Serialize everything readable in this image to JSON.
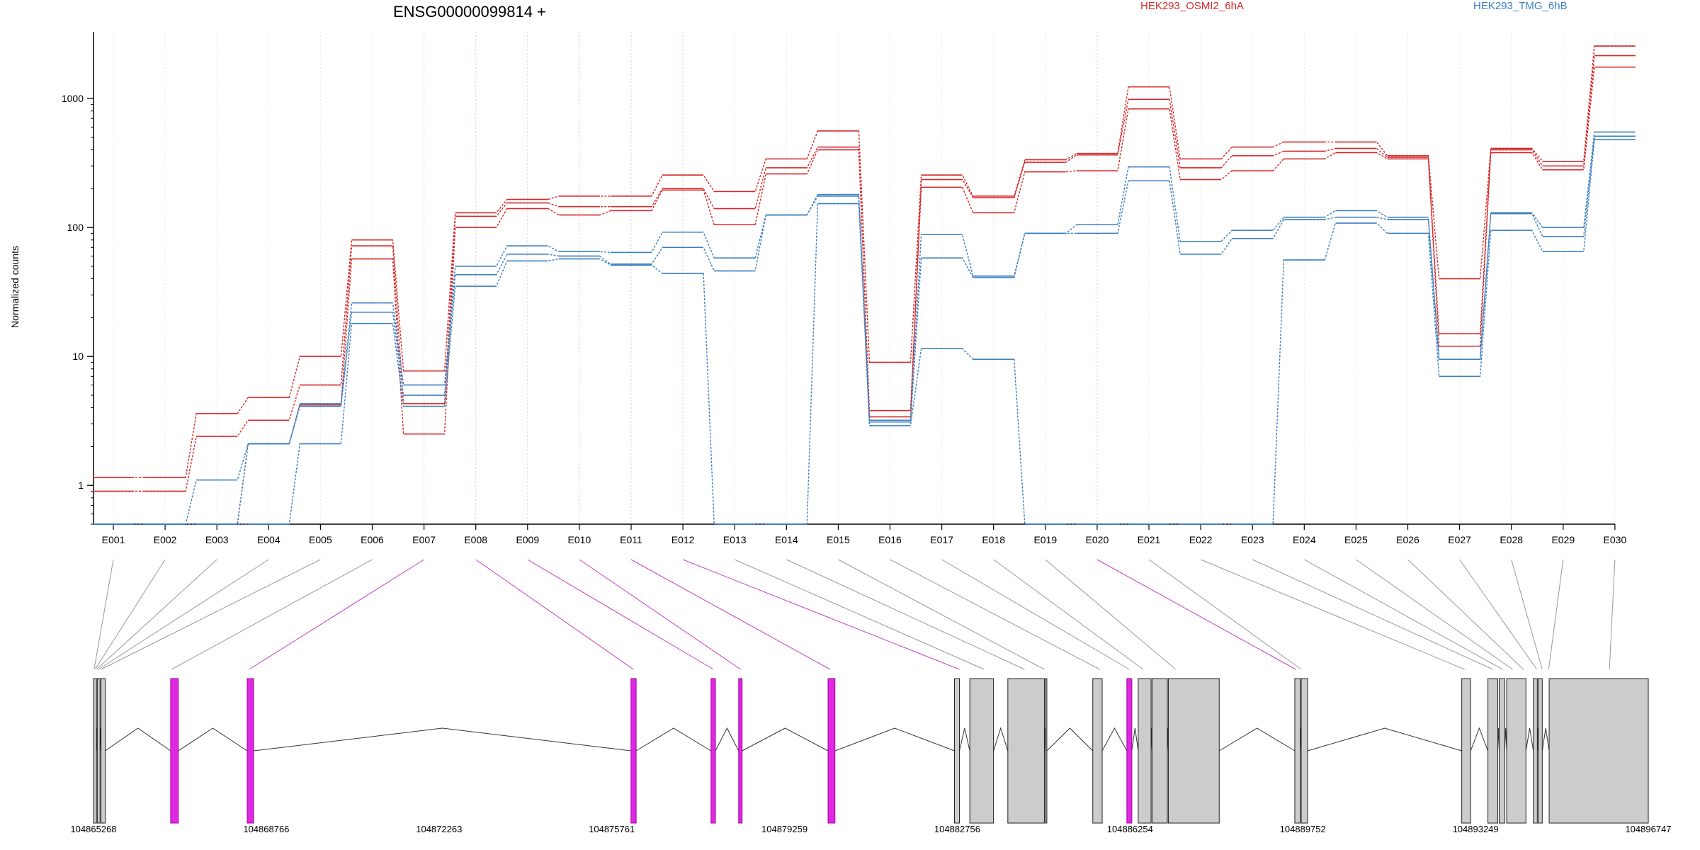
{
  "chart_data": {
    "type": "line",
    "title": "ENSG00000099814 +",
    "ylabel": "Normalized counts",
    "yscale": "log",
    "ylim": [
      0.5,
      3500
    ],
    "yticks": [
      1,
      10,
      100,
      1000
    ],
    "ytick_labels": [
      "1",
      "10",
      "100",
      "1000"
    ],
    "grid": "vertical dotted lines at each exon",
    "legend_placement": "top-right",
    "colors": {
      "HEK293_OSMI2_6hA": "#d62728",
      "HEK293_TMG_6hB": "#3a7ebf",
      "highlight": "#e028e0",
      "exon_fill": "#cccccc"
    },
    "categories": [
      "E001",
      "E002",
      "E003",
      "E004",
      "E005",
      "E006",
      "E007",
      "E008",
      "E009",
      "E010",
      "E011",
      "E012",
      "E013",
      "E014",
      "E015",
      "E016",
      "E017",
      "E018",
      "E019",
      "E020",
      "E021",
      "E022",
      "E023",
      "E024",
      "E025",
      "E026",
      "E027",
      "E028",
      "E029",
      "E030"
    ],
    "series": [
      {
        "name": "HEK293_OSMI2_6hA",
        "group": "HEK293_OSMI2_6hA",
        "values": [
          1.15,
          1.15,
          3.6,
          4.8,
          10,
          80,
          7.7,
          130,
          165,
          175,
          175,
          255,
          190,
          340,
          560,
          9,
          255,
          175,
          335,
          375,
          1230,
          340,
          420,
          460,
          460,
          360,
          40,
          410,
          325,
          2550
        ]
      },
      {
        "name": "",
        "group": "HEK293_OSMI2_6hA",
        "values": [
          0.9,
          0.9,
          2.4,
          3.2,
          6,
          72,
          4.3,
          122,
          155,
          145,
          145,
          200,
          140,
          290,
          420,
          3.8,
          235,
          170,
          320,
          365,
          985,
          290,
          360,
          390,
          410,
          350,
          15,
          400,
          300,
          2150
        ]
      },
      {
        "name": "",
        "group": "HEK293_OSMI2_6hA",
        "values": [
          0.5,
          0.5,
          0.5,
          2.1,
          4.2,
          57,
          2.5,
          100,
          140,
          125,
          135,
          195,
          105,
          260,
          400,
          3.4,
          205,
          130,
          270,
          275,
          830,
          235,
          275,
          340,
          380,
          340,
          12,
          380,
          280,
          1750
        ]
      },
      {
        "name": "HEK293_TMG_6hB",
        "group": "HEK293_TMG_6hB",
        "values": [
          0.5,
          0.5,
          1.1,
          2.1,
          4.3,
          26,
          6,
          50,
          72,
          65,
          64,
          92,
          58,
          125,
          180,
          3.2,
          88,
          42,
          90,
          105,
          295,
          78,
          95,
          120,
          135,
          120,
          9.5,
          130,
          100,
          550
        ]
      },
      {
        "name": "",
        "group": "HEK293_TMG_6hB",
        "values": [
          0.5,
          0.5,
          0.5,
          2.1,
          4.1,
          22,
          5,
          43,
          62,
          60,
          52,
          70,
          46,
          125,
          175,
          3.1,
          58,
          41,
          90,
          90,
          230,
          62,
          82,
          115,
          120,
          115,
          9.5,
          128,
          85,
          510
        ]
      },
      {
        "name": "",
        "group": "HEK293_TMG_6hB",
        "values": [
          0.5,
          0.5,
          0.5,
          0.5,
          2.1,
          18,
          4.1,
          35,
          55,
          57,
          51,
          44,
          0.5,
          0.5,
          153,
          2.9,
          11.5,
          9.5,
          0.5,
          0.5,
          0.5,
          0.5,
          0.5,
          56,
          108,
          90,
          7,
          95,
          65,
          480
        ]
      }
    ],
    "genome": {
      "coordinate_range": [
        104865268,
        104896747
      ],
      "coordinate_labels": [
        "104865268",
        "104868766",
        "104872263",
        "104875761",
        "104879259",
        "104882756",
        "104886254",
        "104889752",
        "104893249",
        "104896747"
      ],
      "exons": [
        {
          "start": 104865268,
          "end": 104865328,
          "highlight": false
        },
        {
          "start": 104865345,
          "end": 104865400,
          "highlight": false
        },
        {
          "start": 104865420,
          "end": 104865505,
          "highlight": false
        },
        {
          "start": 104866830,
          "end": 104866985,
          "highlight": true
        },
        {
          "start": 104868380,
          "end": 104868510,
          "highlight": true
        },
        {
          "start": 104876150,
          "end": 104876255,
          "highlight": true
        },
        {
          "start": 104877770,
          "end": 104877860,
          "highlight": true
        },
        {
          "start": 104878330,
          "end": 104878400,
          "highlight": true
        },
        {
          "start": 104880140,
          "end": 104880280,
          "highlight": true
        },
        {
          "start": 104882700,
          "end": 104882800,
          "highlight": false
        },
        {
          "start": 104883010,
          "end": 104883490,
          "highlight": false
        },
        {
          "start": 104883780,
          "end": 104884520,
          "highlight": false
        },
        {
          "start": 104884540,
          "end": 104884570,
          "highlight": false
        },
        {
          "start": 104885500,
          "end": 104885690,
          "highlight": false
        },
        {
          "start": 104886190,
          "end": 104886290,
          "highlight": true
        },
        {
          "start": 104886420,
          "end": 104886680,
          "highlight": false
        },
        {
          "start": 104886700,
          "end": 104887010,
          "highlight": false
        },
        {
          "start": 104887030,
          "end": 104888060,
          "highlight": false
        },
        {
          "start": 104889590,
          "end": 104889700,
          "highlight": false
        },
        {
          "start": 104889720,
          "end": 104889850,
          "highlight": false
        },
        {
          "start": 104892970,
          "end": 104893150,
          "highlight": false
        },
        {
          "start": 104893500,
          "end": 104893700,
          "highlight": false
        },
        {
          "start": 104893730,
          "end": 104893840,
          "highlight": false
        },
        {
          "start": 104893880,
          "end": 104894270,
          "highlight": false
        },
        {
          "start": 104894420,
          "end": 104894500,
          "highlight": false
        },
        {
          "start": 104894520,
          "end": 104894600,
          "highlight": false
        },
        {
          "start": 104894740,
          "end": 104896747,
          "highlight": false
        }
      ],
      "exon_bin_targets": [
        104865280,
        104865300,
        104865330,
        104865370,
        104865420,
        104866850,
        104868420,
        104876200,
        104877820,
        104878370,
        104880180,
        104882800,
        104883300,
        104884120,
        104884520,
        104885640,
        104886240,
        104886520,
        104887180,
        104889610,
        104889720,
        104893030,
        104893600,
        104893800,
        104894000,
        104894220,
        104894490,
        104894600,
        104894730,
        104895960
      ],
      "highlighted_bins": [
        "E007",
        "E008",
        "E009",
        "E010",
        "E011",
        "E012",
        "E020"
      ]
    }
  }
}
